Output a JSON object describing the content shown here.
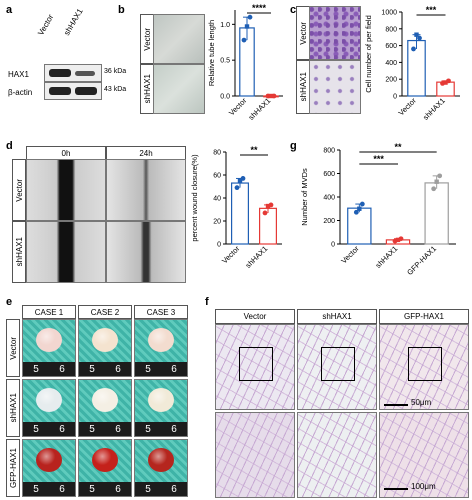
{
  "panels": {
    "a": "a",
    "b": "b",
    "c": "c",
    "d": "d",
    "e": "e",
    "f": "f",
    "g": "g"
  },
  "western": {
    "lanes": [
      "Vector",
      "shHAX1"
    ],
    "rows": [
      {
        "label": "HAX1",
        "kda": "36 kDa"
      },
      {
        "label": "β-actin",
        "kda": "43 kDa"
      }
    ]
  },
  "groups": {
    "vector": "Vector",
    "sh": "shHAX1",
    "gfp": "GFP-HAX1"
  },
  "colors": {
    "vector": "#1f5fb4",
    "sh": "#e53935",
    "gfp": "#9e9e9e"
  },
  "sig": {
    "b": "****",
    "c": "***",
    "d": "**",
    "g1": "***",
    "g2": "**"
  },
  "wound_times": [
    "0h",
    "24h"
  ],
  "cases": [
    "CASE 1",
    "CASE 2",
    "CASE 3"
  ],
  "ruler": [
    "5",
    "6"
  ],
  "scale_bars": [
    "50μm",
    "100μm"
  ],
  "chart_data": [
    {
      "type": "bar",
      "panel": "b",
      "categories": [
        "Vector",
        "shHAX1"
      ],
      "values": [
        0.95,
        0.0
      ],
      "points": [
        [
          0.78,
          0.97,
          1.1
        ],
        [
          0.0,
          0.0,
          0.0
        ]
      ],
      "ylabel": "Relative tube length",
      "ylim": [
        0,
        1.2
      ],
      "yticks": [
        "0.0",
        "0.5",
        "1.0"
      ]
    },
    {
      "type": "bar",
      "panel": "c",
      "categories": [
        "Vector",
        "shHAX1"
      ],
      "values": [
        660,
        165
      ],
      "points": [
        [
          560,
          730,
          690
        ],
        [
          150,
          160,
          180
        ]
      ],
      "ylabel": "Cell number of per field",
      "ylim": [
        0,
        1000
      ],
      "yticks": [
        "0",
        "200",
        "400",
        "600",
        "800",
        "1000"
      ]
    },
    {
      "type": "bar",
      "panel": "d",
      "categories": [
        "Vector",
        "shHAX1"
      ],
      "values": [
        53,
        31
      ],
      "points": [
        [
          49,
          55,
          57
        ],
        [
          27,
          33,
          34
        ]
      ],
      "ylabel": "percent wound closure(%)",
      "ylim": [
        0,
        80
      ],
      "yticks": [
        "0",
        "20",
        "40",
        "60",
        "80"
      ]
    },
    {
      "type": "bar",
      "panel": "g",
      "categories": [
        "Vector",
        "shHAX1",
        "GFP-HAX1"
      ],
      "values": [
        305,
        35,
        520
      ],
      "points": [
        [
          270,
          300,
          340
        ],
        [
          25,
          35,
          45
        ],
        [
          470,
          530,
          580
        ]
      ],
      "ylabel": "Number of MVDs",
      "ylim": [
        0,
        800
      ],
      "yticks": [
        "0",
        "200",
        "400",
        "600",
        "800"
      ]
    }
  ]
}
